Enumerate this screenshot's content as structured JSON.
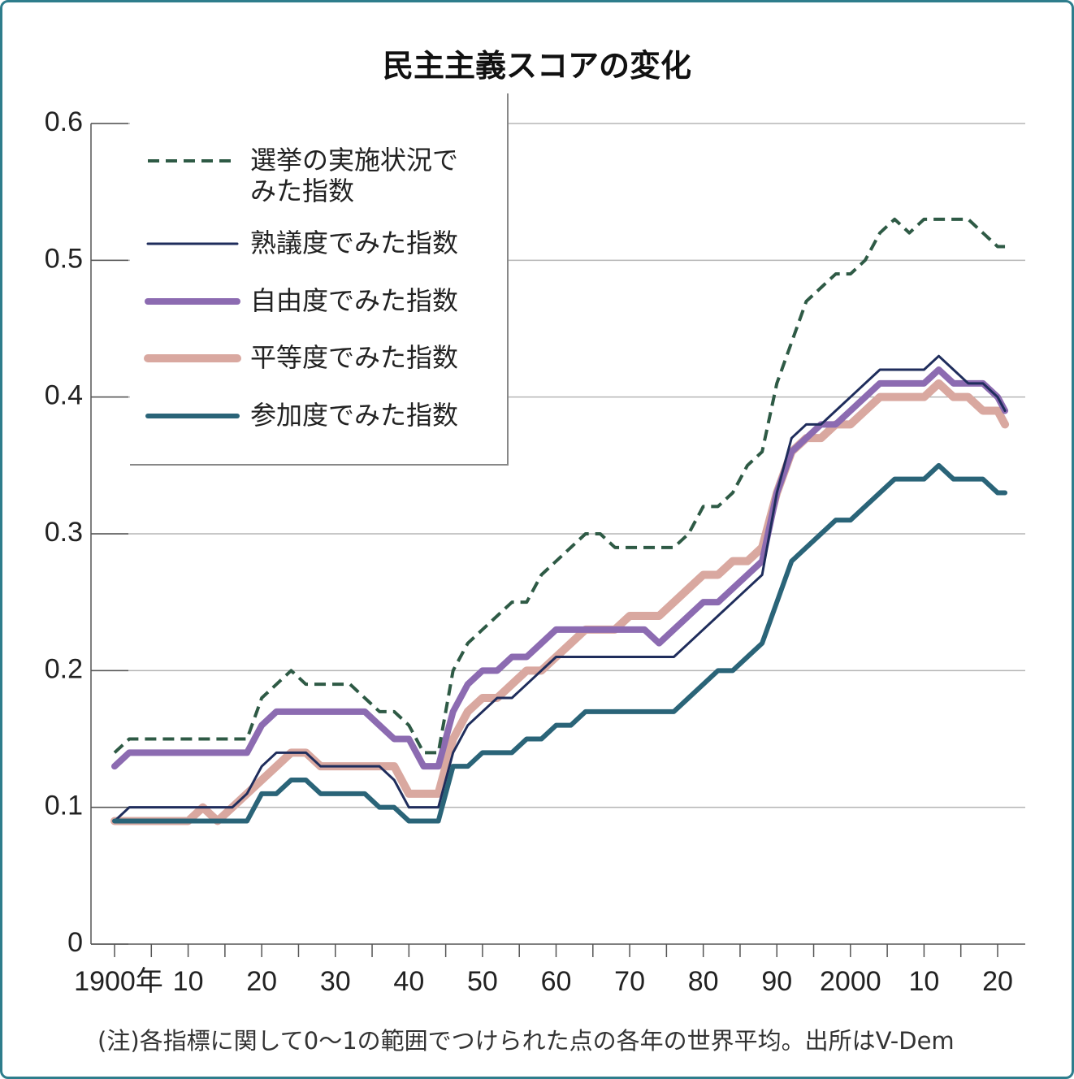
{
  "chart_data": {
    "type": "line",
    "title": "民主主義スコアの変化",
    "note": "(注)各指標に関して0〜1の範囲でつけられた点の各年の世界平均。出所はV-Dem",
    "x": [
      1900,
      1902,
      1904,
      1906,
      1908,
      1910,
      1912,
      1914,
      1916,
      1918,
      1920,
      1922,
      1924,
      1926,
      1928,
      1930,
      1932,
      1934,
      1936,
      1938,
      1940,
      1942,
      1944,
      1946,
      1948,
      1950,
      1952,
      1954,
      1956,
      1958,
      1960,
      1962,
      1964,
      1966,
      1968,
      1970,
      1972,
      1974,
      1976,
      1978,
      1980,
      1982,
      1984,
      1986,
      1988,
      1990,
      1992,
      1994,
      1996,
      1998,
      2000,
      2002,
      2004,
      2006,
      2008,
      2010,
      2012,
      2014,
      2016,
      2018,
      2020,
      2021
    ],
    "xlim": [
      1897,
      2024
    ],
    "xticks": [
      {
        "value": 1900,
        "label": "1900年"
      },
      {
        "value": 1910,
        "label": "10"
      },
      {
        "value": 1920,
        "label": "20"
      },
      {
        "value": 1930,
        "label": "30"
      },
      {
        "value": 1940,
        "label": "40"
      },
      {
        "value": 1950,
        "label": "50"
      },
      {
        "value": 1960,
        "label": "60"
      },
      {
        "value": 1970,
        "label": "70"
      },
      {
        "value": 1980,
        "label": "80"
      },
      {
        "value": 1990,
        "label": "90"
      },
      2000,
      {
        "value": 2010,
        "label": "10"
      },
      {
        "value": 2020,
        "label": "20"
      }
    ],
    "ylim": [
      0,
      0.6
    ],
    "yticks": [
      0,
      0.1,
      0.2,
      0.3,
      0.4,
      0.5,
      0.6
    ],
    "grid": true,
    "legend": "upper left",
    "series": [
      {
        "name": "選挙の実施状況でみた指数",
        "color": "#2e5a45",
        "dashed": true,
        "values": [
          0.14,
          0.15,
          0.15,
          0.15,
          0.15,
          0.15,
          0.15,
          0.15,
          0.15,
          0.15,
          0.18,
          0.19,
          0.2,
          0.19,
          0.19,
          0.19,
          0.19,
          0.18,
          0.17,
          0.17,
          0.16,
          0.14,
          0.14,
          0.2,
          0.22,
          0.23,
          0.24,
          0.25,
          0.25,
          0.27,
          0.28,
          0.29,
          0.3,
          0.3,
          0.29,
          0.29,
          0.29,
          0.29,
          0.29,
          0.3,
          0.32,
          0.32,
          0.33,
          0.35,
          0.36,
          0.41,
          0.44,
          0.47,
          0.48,
          0.49,
          0.49,
          0.5,
          0.52,
          0.53,
          0.52,
          0.53,
          0.53,
          0.53,
          0.53,
          0.52,
          0.51,
          0.51
        ]
      },
      {
        "name": "熟議度でみた指数",
        "color": "#1f2d5c",
        "values": [
          0.09,
          0.1,
          0.1,
          0.1,
          0.1,
          0.1,
          0.1,
          0.1,
          0.1,
          0.11,
          0.13,
          0.14,
          0.14,
          0.14,
          0.13,
          0.13,
          0.13,
          0.13,
          0.13,
          0.12,
          0.1,
          0.1,
          0.1,
          0.14,
          0.16,
          0.17,
          0.18,
          0.18,
          0.19,
          0.2,
          0.21,
          0.21,
          0.21,
          0.21,
          0.21,
          0.21,
          0.21,
          0.21,
          0.21,
          0.22,
          0.23,
          0.24,
          0.25,
          0.26,
          0.27,
          0.33,
          0.37,
          0.38,
          0.38,
          0.39,
          0.4,
          0.41,
          0.42,
          0.42,
          0.42,
          0.42,
          0.43,
          0.42,
          0.41,
          0.41,
          0.4,
          0.39
        ]
      },
      {
        "name": "自由度でみた指数",
        "color": "#8c6bb1",
        "values": [
          0.13,
          0.14,
          0.14,
          0.14,
          0.14,
          0.14,
          0.14,
          0.14,
          0.14,
          0.14,
          0.16,
          0.17,
          0.17,
          0.17,
          0.17,
          0.17,
          0.17,
          0.17,
          0.16,
          0.15,
          0.15,
          0.13,
          0.13,
          0.17,
          0.19,
          0.2,
          0.2,
          0.21,
          0.21,
          0.22,
          0.23,
          0.23,
          0.23,
          0.23,
          0.23,
          0.23,
          0.23,
          0.22,
          0.23,
          0.24,
          0.25,
          0.25,
          0.26,
          0.27,
          0.28,
          0.33,
          0.36,
          0.37,
          0.38,
          0.38,
          0.39,
          0.4,
          0.41,
          0.41,
          0.41,
          0.41,
          0.42,
          0.41,
          0.41,
          0.41,
          0.4,
          0.39
        ]
      },
      {
        "name": "平等度でみた指数",
        "color": "#d9a8a0",
        "values": [
          0.09,
          0.09,
          0.09,
          0.09,
          0.09,
          0.09,
          0.1,
          0.09,
          0.1,
          0.11,
          0.12,
          0.13,
          0.14,
          0.14,
          0.13,
          0.13,
          0.13,
          0.13,
          0.13,
          0.13,
          0.11,
          0.11,
          0.11,
          0.15,
          0.17,
          0.18,
          0.18,
          0.19,
          0.2,
          0.2,
          0.21,
          0.22,
          0.23,
          0.23,
          0.23,
          0.24,
          0.24,
          0.24,
          0.25,
          0.26,
          0.27,
          0.27,
          0.28,
          0.28,
          0.29,
          0.33,
          0.36,
          0.37,
          0.37,
          0.38,
          0.38,
          0.39,
          0.4,
          0.4,
          0.4,
          0.4,
          0.41,
          0.4,
          0.4,
          0.39,
          0.39,
          0.38
        ]
      },
      {
        "name": "参加度でみた指数",
        "color": "#2a6478",
        "values": [
          0.09,
          0.09,
          0.09,
          0.09,
          0.09,
          0.09,
          0.09,
          0.09,
          0.09,
          0.09,
          0.11,
          0.11,
          0.12,
          0.12,
          0.11,
          0.11,
          0.11,
          0.11,
          0.1,
          0.1,
          0.09,
          0.09,
          0.09,
          0.13,
          0.13,
          0.14,
          0.14,
          0.14,
          0.15,
          0.15,
          0.16,
          0.16,
          0.17,
          0.17,
          0.17,
          0.17,
          0.17,
          0.17,
          0.17,
          0.18,
          0.19,
          0.2,
          0.2,
          0.21,
          0.22,
          0.25,
          0.28,
          0.29,
          0.3,
          0.31,
          0.31,
          0.32,
          0.33,
          0.34,
          0.34,
          0.34,
          0.35,
          0.34,
          0.34,
          0.34,
          0.33,
          0.33
        ]
      }
    ]
  }
}
